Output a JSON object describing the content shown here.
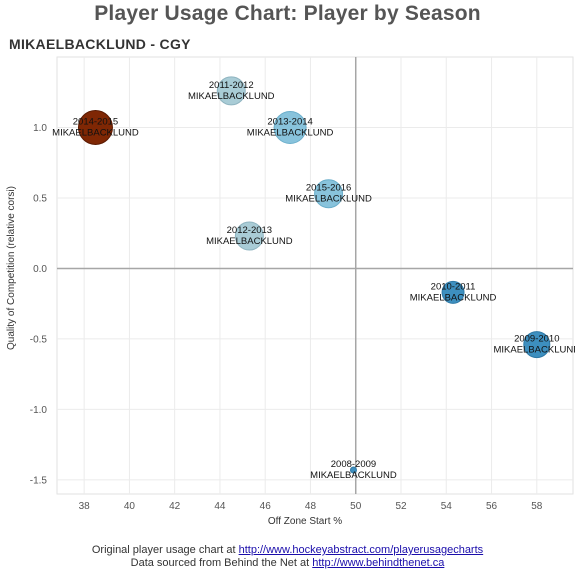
{
  "title": "Player Usage Chart: Player by Season",
  "subtitle": "MIKAELBACKLUND - CGY",
  "footer": {
    "line1_text": "Original player usage chart at ",
    "line1_link": "http://www.hockeyabstract.com/playerusagecharts",
    "line2_text": "Data sourced from Behind the Net at ",
    "line2_link": "http://www.behindthenet.ca"
  },
  "chart_data": {
    "type": "scatter",
    "title": "Player Usage Chart: Player by Season",
    "subtitle": "MIKAELBACKLUND - CGY",
    "xlabel": "Off Zone Start %",
    "ylabel": "Quality of Competition (relative corsi)",
    "xlim": [
      36.8,
      59.6
    ],
    "ylim": [
      -1.6,
      1.5
    ],
    "xticks": [
      38,
      40,
      42,
      44,
      46,
      48,
      50,
      52,
      54,
      56,
      58
    ],
    "yticks": [
      -1.5,
      -1.0,
      -0.5,
      0.0,
      0.5,
      1.0
    ],
    "reference_lines": {
      "x": 50,
      "y": 0
    },
    "grid": true,
    "points": [
      {
        "season": "2014-2015",
        "player": "MIKAELBACKLUND",
        "x": 38.5,
        "y": 1.0,
        "size": 17,
        "color": "#7f2704",
        "stroke": "#5a1a02"
      },
      {
        "season": "2011-2012",
        "player": "MIKAELBACKLUND",
        "x": 44.5,
        "y": 1.26,
        "size": 14,
        "color": "#a9ccd6",
        "stroke": "#8fb4c0"
      },
      {
        "season": "2013-2014",
        "player": "MIKAELBACKLUND",
        "x": 47.1,
        "y": 1.0,
        "size": 16,
        "color": "#88c3dc",
        "stroke": "#6aaecb"
      },
      {
        "season": "2015-2016",
        "player": "MIKAELBACKLUND",
        "x": 48.8,
        "y": 0.53,
        "size": 14,
        "color": "#88c3dc",
        "stroke": "#6aaecb"
      },
      {
        "season": "2012-2013",
        "player": "MIKAELBACKLUND",
        "x": 45.3,
        "y": 0.23,
        "size": 14,
        "color": "#a9ccd6",
        "stroke": "#8fb4c0"
      },
      {
        "season": "2010-2011",
        "player": "MIKAELBACKLUND",
        "x": 54.3,
        "y": -0.17,
        "size": 11,
        "color": "#3d8fbf",
        "stroke": "#2f79a6"
      },
      {
        "season": "2009-2010",
        "player": "MIKAELBACKLUND",
        "x": 58.0,
        "y": -0.54,
        "size": 13,
        "color": "#3d8fbf",
        "stroke": "#2f79a6"
      },
      {
        "season": "2008-2009",
        "player": "MIKAELBACKLUND",
        "x": 49.9,
        "y": -1.43,
        "size": 3,
        "color": "#3d8fbf",
        "stroke": "#2f79a6"
      }
    ]
  }
}
